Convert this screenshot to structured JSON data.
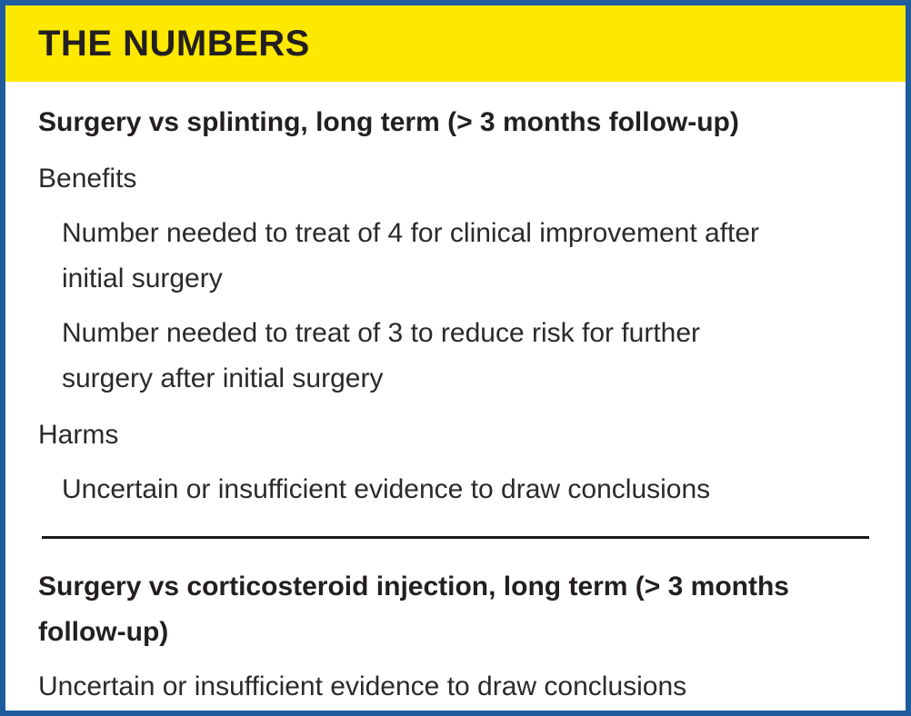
{
  "panel": {
    "title": "THE NUMBERS",
    "colors": {
      "header_bg": "#fce800",
      "border_blue": "#1e5c9e",
      "text_dark": "#231f20",
      "divider": "#1a1a1a"
    },
    "sections": [
      {
        "heading": "Surgery vs splinting, long term (> 3 months follow-up)",
        "groups": [
          {
            "label": "Benefits",
            "items": [
              "Number needed to treat of 4 for clinical improvement after initial surgery",
              "Number needed to treat of 3 to reduce risk for further surgery after initial surgery"
            ]
          },
          {
            "label": "Harms",
            "items": [
              "Uncertain or insufficient evidence to draw conclusions"
            ]
          }
        ]
      },
      {
        "heading": "Surgery vs corticosteroid injection, long term (> 3 months follow-up)",
        "note": "Uncertain or insufficient evidence to draw conclusions"
      }
    ]
  }
}
